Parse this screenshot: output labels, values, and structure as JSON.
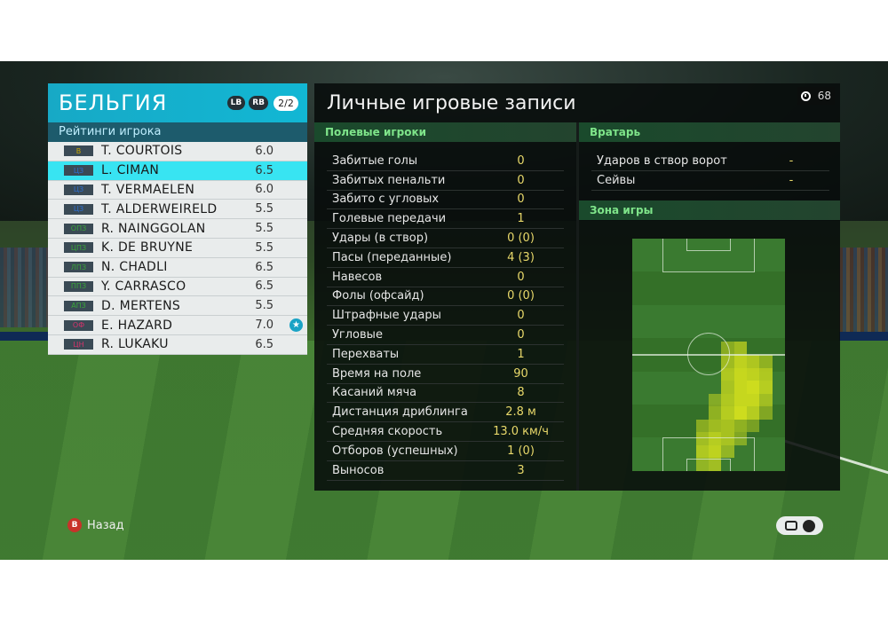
{
  "team": {
    "name": "БЕЛЬГИЯ",
    "lb_button": "LB",
    "rb_button": "RB",
    "page": "2/2",
    "ratings_title": "Рейтинги игрока",
    "players": [
      {
        "pos": "В",
        "pos_color": "#c9a800",
        "name": "T. COURTOIS",
        "rating": "6.0"
      },
      {
        "pos": "ЦЗ",
        "pos_color": "#2d6fd1",
        "name": "L. CIMAN",
        "rating": "6.5",
        "selected": true
      },
      {
        "pos": "ЦЗ",
        "pos_color": "#2d6fd1",
        "name": "T. VERMAELEN",
        "rating": "6.0"
      },
      {
        "pos": "ЦЗ",
        "pos_color": "#2d6fd1",
        "name": "T. ALDERWEIRELD",
        "rating": "5.5"
      },
      {
        "pos": "ОПЗ",
        "pos_color": "#3aa63a",
        "name": "R. NAINGGOLAN",
        "rating": "5.5"
      },
      {
        "pos": "ЦПЗ",
        "pos_color": "#3aa63a",
        "name": "K. DE BRUYNE",
        "rating": "5.5"
      },
      {
        "pos": "ЛПЗ",
        "pos_color": "#3aa63a",
        "name": "N. CHADLI",
        "rating": "6.5"
      },
      {
        "pos": "ППЗ",
        "pos_color": "#3aa63a",
        "name": "Y. CARRASCO",
        "rating": "6.5"
      },
      {
        "pos": "АПЗ",
        "pos_color": "#3aa63a",
        "name": "D. MERTENS",
        "rating": "5.5"
      },
      {
        "pos": "ОФ",
        "pos_color": "#d6336c",
        "name": "E. HAZARD",
        "rating": "7.0",
        "star": true
      },
      {
        "pos": "ЦН",
        "pos_color": "#d6336c",
        "name": "R. LUKAKU",
        "rating": "6.5"
      }
    ]
  },
  "records": {
    "title": "Личные игровые записи",
    "timer": "68",
    "field_section": "Полевые игроки",
    "gk_section": "Вратарь",
    "zone_section": "Зона игры",
    "field_stats": [
      {
        "label": "Забитые голы",
        "value": "0"
      },
      {
        "label": "Забитых пенальти",
        "value": "0"
      },
      {
        "label": "Забито с угловых",
        "value": "0"
      },
      {
        "label": "Голевые передачи",
        "value": "1"
      },
      {
        "label": "Удары (в створ)",
        "value": "0 (0)"
      },
      {
        "label": "Пасы (переданные)",
        "value": "4 (3)"
      },
      {
        "label": "Навесов",
        "value": "0"
      },
      {
        "label": "Фолы (офсайд)",
        "value": "0 (0)"
      },
      {
        "label": "Штрафные удары",
        "value": "0"
      },
      {
        "label": "Угловые",
        "value": "0"
      },
      {
        "label": "Перехваты",
        "value": "1"
      },
      {
        "label": "Время на поле",
        "value": "90"
      },
      {
        "label": "Касаний мяча",
        "value": "8"
      },
      {
        "label": "Дистанция дриблинга",
        "value": "2.8 м"
      },
      {
        "label": "Средняя скорость",
        "value": "13.0 км/ч"
      },
      {
        "label": "Отборов (успешных)",
        "value": "1 (0)"
      },
      {
        "label": "Выносов",
        "value": "3"
      }
    ],
    "gk_stats": [
      {
        "label": "Ударов в створ ворот",
        "value": "-"
      },
      {
        "label": "Сейвы",
        "value": "-"
      }
    ]
  },
  "footer": {
    "back_button_icon": "B",
    "back_label": "Назад"
  },
  "colors": {
    "accent_cyan": "#12b7d4",
    "selected_row": "#38e4f2",
    "section_green": "#7fe58a",
    "value_yellow": "#e8d86a"
  }
}
